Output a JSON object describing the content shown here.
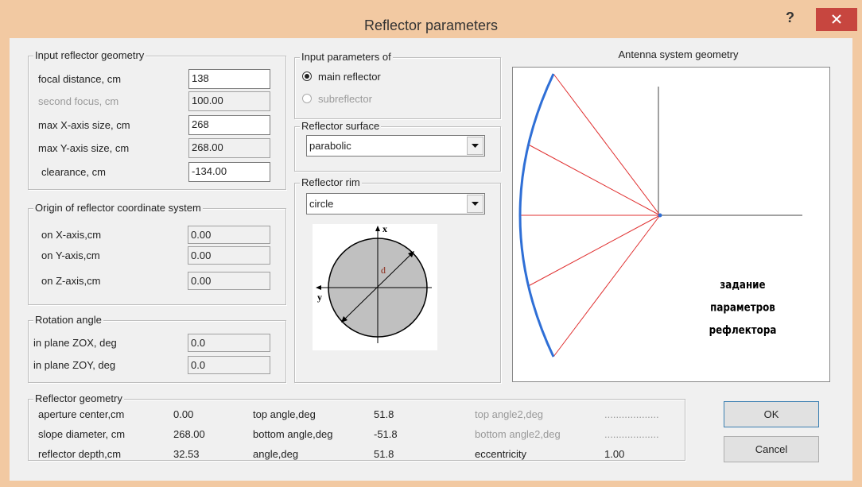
{
  "title": "Reflector parameters",
  "help": "?",
  "input_geometry": {
    "legend": "Input reflector geometry",
    "rows": [
      {
        "label": "focal distance, cm",
        "value": "138"
      },
      {
        "label": "second focus, cm",
        "value": "100.00"
      },
      {
        "label": "max X-axis size, cm",
        "value": "268"
      },
      {
        "label": "max Y-axis size, cm",
        "value": "268.00"
      },
      {
        "label": "clearance, cm",
        "value": "-134.00"
      }
    ]
  },
  "origin": {
    "legend": "Origin of reflector coordinate system",
    "rows": [
      {
        "label": "on X-axis,cm",
        "value": "0.00"
      },
      {
        "label": "on Y-axis,cm",
        "value": "0.00"
      },
      {
        "label": "on Z-axis,cm",
        "value": "0.00"
      }
    ]
  },
  "rotation": {
    "legend": "Rotation angle",
    "rows": [
      {
        "label": "in plane ZOX, deg",
        "value": "0.0"
      },
      {
        "label": "in plane ZOY, deg",
        "value": "0.0"
      }
    ]
  },
  "input_parameters": {
    "legend": "Input parameters of",
    "options": [
      "main reflector",
      "subreflector"
    ]
  },
  "surface": {
    "legend": "Reflector surface",
    "selected": "parabolic"
  },
  "rim": {
    "legend": "Reflector rim",
    "selected": "circle",
    "diagram_labels": [
      "x",
      "y",
      "d"
    ]
  },
  "geometry_view": {
    "title": "Antenna system geometry",
    "annotation": [
      "задание",
      "параметров",
      "рефлектора"
    ]
  },
  "reflector_geometry": {
    "legend": "Reflector geometry",
    "rows": [
      [
        "aperture center,cm",
        "0.00",
        "top angle,deg",
        "51.8",
        "top angle2,deg",
        "..................."
      ],
      [
        "slope diameter, cm",
        "268.00",
        "bottom angle,deg",
        "-51.8",
        "bottom angle2,deg",
        "..................."
      ],
      [
        "reflector depth,cm",
        "32.53",
        "angle,deg",
        "51.8",
        "eccentricity",
        "1.00"
      ]
    ]
  },
  "buttons": [
    "OK",
    "Cancel"
  ]
}
